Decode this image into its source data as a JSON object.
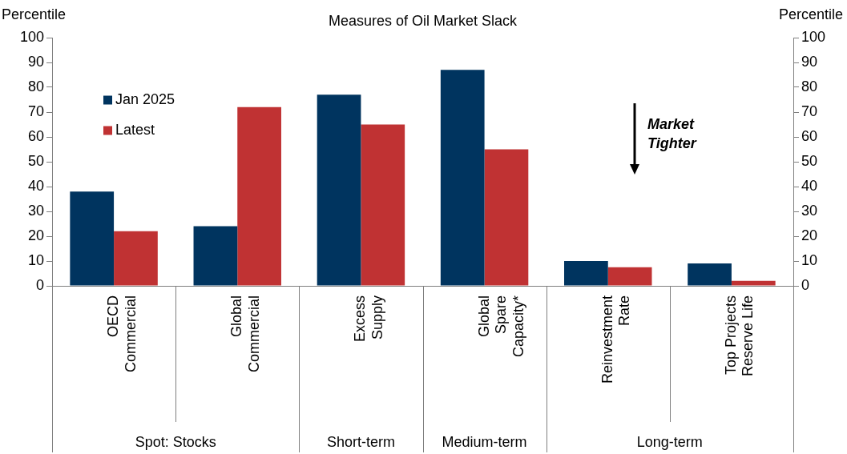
{
  "chart_data": {
    "type": "bar",
    "title": "Measures of Oil Market Slack",
    "ylabel": "Percentile",
    "y2label": "Percentile",
    "categories": [
      "OECD\nCommercial",
      "Global\nCommercial",
      "Excess\nSupply",
      "Global\nSpare\nCapacity*",
      "Reinvestment\nRate",
      "Top Projects\nReserve Life"
    ],
    "series": [
      {
        "name": "Jan 2025",
        "color": "#00345f",
        "values": [
          38,
          24,
          77,
          87,
          10,
          9
        ]
      },
      {
        "name": "Latest",
        "color": "#c03233",
        "values": [
          22,
          72,
          65,
          55,
          7.5,
          2
        ]
      }
    ],
    "ylim": [
      0,
      100
    ],
    "yticks": [
      0,
      10,
      20,
      30,
      40,
      50,
      60,
      70,
      80,
      90,
      100
    ],
    "y2lim": [
      0,
      100
    ],
    "y2ticks": [
      0,
      10,
      20,
      30,
      40,
      50,
      60,
      70,
      80,
      90,
      100
    ],
    "legend": "top left",
    "grid": false,
    "annotations": [
      "Spot: Stocks",
      "Short-term",
      "Medium-term",
      "Long-term",
      "Market Tighter"
    ]
  }
}
